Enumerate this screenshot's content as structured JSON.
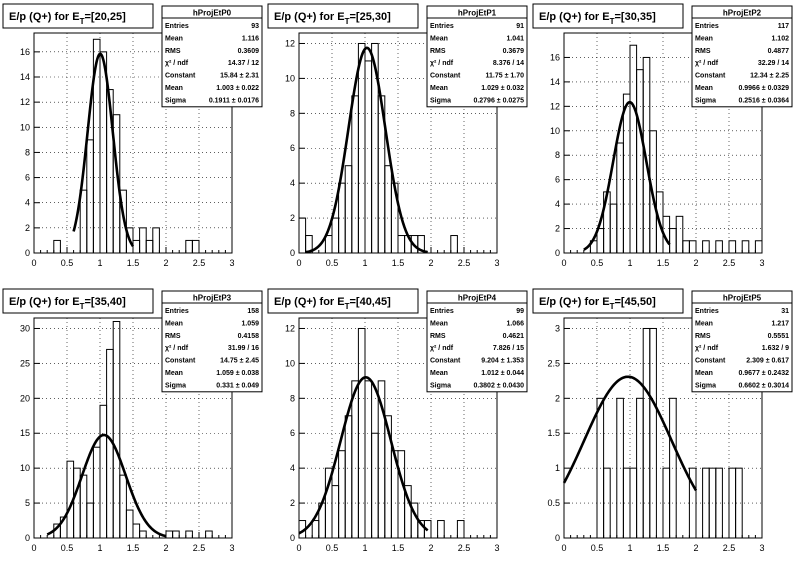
{
  "chart_data": [
    {
      "type": "bar",
      "title": "E/p (Q+) for E_T=[20,25]",
      "title_main": "E/p (Q+) for E",
      "title_sub": "T",
      "title_end": "=[20,25]",
      "stats_name": "hProjEtP0",
      "stats": [
        {
          "label": "Entries",
          "value": "93"
        },
        {
          "label": "Mean",
          "value": "1.116"
        },
        {
          "label": "RMS",
          "value": "0.3609"
        },
        {
          "label": "χ² / ndf",
          "value": "14.37 / 12"
        },
        {
          "label": "Constant",
          "value": "15.84 ± 2.31"
        },
        {
          "label": "Mean",
          "value": "1.003 ± 0.022"
        },
        {
          "label": "Sigma",
          "value": "0.1911 ± 0.0176"
        }
      ],
      "xlim": [
        0,
        3
      ],
      "ylim": [
        0,
        17.5
      ],
      "xticks": [
        0,
        0.5,
        1,
        1.5,
        2,
        2.5,
        3
      ],
      "xtick_labels": [
        "0",
        "0.5",
        "1",
        "1.5",
        "2",
        "2.5",
        "3"
      ],
      "yticks": [
        0,
        2,
        4,
        6,
        8,
        10,
        12,
        14,
        16
      ],
      "ytick_labels": [
        "0",
        "2",
        "4",
        "6",
        "8",
        "10",
        "12",
        "14",
        "16"
      ],
      "bin_width": 0.1,
      "x": [
        0.3,
        0.7,
        0.8,
        0.9,
        1.0,
        1.1,
        1.2,
        1.3,
        1.4,
        1.5,
        1.6,
        1.7,
        1.8,
        1.9,
        2.3,
        2.4
      ],
      "values": [
        1,
        5,
        9,
        17,
        16,
        13,
        11,
        5,
        2,
        1,
        2,
        1,
        2,
        0,
        1,
        1
      ],
      "fit": {
        "constant": 15.84,
        "mean": 1.003,
        "sigma": 0.1911,
        "range": [
          0.6,
          1.5
        ]
      }
    },
    {
      "type": "bar",
      "title": "E/p (Q+) for E_T=[25,30]",
      "title_main": "E/p (Q+) for E",
      "title_sub": "T",
      "title_end": "=[25,30]",
      "stats_name": "hProjEtP1",
      "stats": [
        {
          "label": "Entries",
          "value": "91"
        },
        {
          "label": "Mean",
          "value": "1.041"
        },
        {
          "label": "RMS",
          "value": "0.3679"
        },
        {
          "label": "χ² / ndf",
          "value": "8.376 / 14"
        },
        {
          "label": "Constant",
          "value": "11.75 ± 1.70"
        },
        {
          "label": "Mean",
          "value": "1.029 ± 0.032"
        },
        {
          "label": "Sigma",
          "value": "0.2796 ± 0.0275"
        }
      ],
      "xlim": [
        0,
        3
      ],
      "ylim": [
        0,
        12.6
      ],
      "xticks": [
        0,
        0.5,
        1,
        1.5,
        2,
        2.5,
        3
      ],
      "xtick_labels": [
        "0",
        "0.5",
        "1",
        "1.5",
        "2",
        "2.5",
        "3"
      ],
      "yticks": [
        0,
        2,
        4,
        6,
        8,
        10,
        12
      ],
      "ytick_labels": [
        "0",
        "2",
        "4",
        "6",
        "8",
        "10",
        "12"
      ],
      "bin_width": 0.1,
      "x": [
        0.0,
        0.1,
        0.4,
        0.5,
        0.6,
        0.7,
        0.8,
        0.9,
        1.0,
        1.1,
        1.2,
        1.3,
        1.4,
        1.5,
        1.6,
        1.7,
        1.8,
        2.3
      ],
      "values": [
        2,
        1,
        1,
        2,
        4,
        5,
        9,
        12,
        11,
        12,
        9,
        5,
        4,
        1,
        1,
        1,
        1,
        1
      ],
      "fit": {
        "constant": 11.75,
        "mean": 1.029,
        "sigma": 0.2796,
        "range": [
          0.1,
          1.95
        ]
      }
    },
    {
      "type": "bar",
      "title": "E/p (Q+) for E_T=[30,35]",
      "title_main": "E/p (Q+) for E",
      "title_sub": "T",
      "title_end": "=[30,35]",
      "stats_name": "hProjEtP2",
      "stats": [
        {
          "label": "Entries",
          "value": "117"
        },
        {
          "label": "Mean",
          "value": "1.102"
        },
        {
          "label": "RMS",
          "value": "0.4877"
        },
        {
          "label": "χ² / ndf",
          "value": "32.29 / 14"
        },
        {
          "label": "Constant",
          "value": "12.34 ± 2.25"
        },
        {
          "label": "Mean",
          "value": "0.9966 ± 0.0329"
        },
        {
          "label": "Sigma",
          "value": "0.2516 ± 0.0364"
        }
      ],
      "xlim": [
        0,
        3
      ],
      "ylim": [
        0,
        18
      ],
      "xticks": [
        0,
        0.5,
        1,
        1.5,
        2,
        2.5,
        3
      ],
      "xtick_labels": [
        "0",
        "0.5",
        "1",
        "1.5",
        "2",
        "2.5",
        "3"
      ],
      "yticks": [
        0,
        2,
        4,
        6,
        8,
        10,
        12,
        14,
        16
      ],
      "ytick_labels": [
        "0",
        "2",
        "4",
        "6",
        "8",
        "10",
        "12",
        "14",
        "16"
      ],
      "bin_width": 0.1,
      "x": [
        0.4,
        0.5,
        0.6,
        0.7,
        0.8,
        0.9,
        1.0,
        1.1,
        1.2,
        1.3,
        1.4,
        1.5,
        1.6,
        1.7,
        1.8,
        1.9,
        2.1,
        2.3,
        2.5,
        2.7,
        2.9
      ],
      "values": [
        1,
        2,
        5,
        4,
        9,
        13,
        17,
        15,
        16,
        10,
        5,
        3,
        2,
        3,
        1,
        1,
        1,
        1,
        1,
        1,
        1
      ],
      "fit": {
        "constant": 12.34,
        "mean": 0.9966,
        "sigma": 0.2516,
        "range": [
          0.3,
          1.6
        ]
      }
    },
    {
      "type": "bar",
      "title": "E/p (Q+) for E_T=[35,40]",
      "title_main": "E/p (Q+) for E",
      "title_sub": "T",
      "title_end": "=[35,40]",
      "stats_name": "hProjEtP3",
      "stats": [
        {
          "label": "Entries",
          "value": "158"
        },
        {
          "label": "Mean",
          "value": "1.059"
        },
        {
          "label": "RMS",
          "value": "0.4158"
        },
        {
          "label": "χ² / ndf",
          "value": "31.99 / 16"
        },
        {
          "label": "Constant",
          "value": "14.75 ± 2.45"
        },
        {
          "label": "Mean",
          "value": "1.059 ± 0.038"
        },
        {
          "label": "Sigma",
          "value": "0.331 ± 0.049"
        }
      ],
      "xlim": [
        0,
        3
      ],
      "ylim": [
        0,
        31.5
      ],
      "xticks": [
        0,
        0.5,
        1,
        1.5,
        2,
        2.5,
        3
      ],
      "xtick_labels": [
        "0",
        "0.5",
        "1",
        "1.5",
        "2",
        "2.5",
        "3"
      ],
      "yticks": [
        0,
        5,
        10,
        15,
        20,
        25,
        30
      ],
      "ytick_labels": [
        "0",
        "5",
        "10",
        "15",
        "20",
        "25",
        "30"
      ],
      "bin_width": 0.1,
      "x": [
        0.3,
        0.4,
        0.5,
        0.6,
        0.7,
        0.8,
        0.9,
        1.0,
        1.1,
        1.2,
        1.3,
        1.4,
        1.5,
        1.6,
        2.0,
        2.1,
        2.3,
        2.6
      ],
      "values": [
        2,
        3,
        11,
        10,
        9,
        5,
        13,
        19,
        27,
        31,
        9,
        4,
        2,
        1,
        1,
        1,
        1,
        1
      ],
      "fit": {
        "constant": 14.75,
        "mean": 1.059,
        "sigma": 0.331,
        "range": [
          0.2,
          2.0
        ]
      }
    },
    {
      "type": "bar",
      "title": "E/p (Q+) for E_T=[40,45]",
      "title_main": "E/p (Q+) for E",
      "title_sub": "T",
      "title_end": "=[40,45]",
      "stats_name": "hProjEtP4",
      "stats": [
        {
          "label": "Entries",
          "value": "99"
        },
        {
          "label": "Mean",
          "value": "1.066"
        },
        {
          "label": "RMS",
          "value": "0.4621"
        },
        {
          "label": "χ² / ndf",
          "value": "7.826 / 15"
        },
        {
          "label": "Constant",
          "value": "9.204 ± 1.353"
        },
        {
          "label": "Mean",
          "value": "1.012 ± 0.044"
        },
        {
          "label": "Sigma",
          "value": "0.3802 ± 0.0430"
        }
      ],
      "xlim": [
        0,
        3
      ],
      "ylim": [
        0,
        12.6
      ],
      "xticks": [
        0,
        0.5,
        1,
        1.5,
        2,
        2.5,
        3
      ],
      "xtick_labels": [
        "0",
        "0.5",
        "1",
        "1.5",
        "2",
        "2.5",
        "3"
      ],
      "yticks": [
        0,
        2,
        4,
        6,
        8,
        10,
        12
      ],
      "ytick_labels": [
        "0",
        "2",
        "4",
        "6",
        "8",
        "10",
        "12"
      ],
      "bin_width": 0.1,
      "x": [
        0.0,
        0.2,
        0.3,
        0.4,
        0.5,
        0.6,
        0.7,
        0.8,
        0.9,
        1.0,
        1.1,
        1.2,
        1.3,
        1.4,
        1.5,
        1.6,
        1.7,
        1.8,
        1.9,
        2.1,
        2.4
      ],
      "values": [
        1,
        1,
        2,
        4,
        3,
        5,
        7,
        9,
        12,
        9,
        6,
        9,
        7,
        5,
        5,
        3,
        2,
        1,
        1,
        1,
        1
      ],
      "fit": {
        "constant": 9.204,
        "mean": 1.012,
        "sigma": 0.3802,
        "range": [
          0.0,
          1.95
        ]
      }
    },
    {
      "type": "bar",
      "title": "E/p (Q+) for E_T=[45,50]",
      "title_main": "E/p (Q+) for E",
      "title_sub": "T",
      "title_end": "=[45,50]",
      "stats_name": "hProjEtP5",
      "stats": [
        {
          "label": "Entries",
          "value": "31"
        },
        {
          "label": "Mean",
          "value": "1.217"
        },
        {
          "label": "RMS",
          "value": "0.5551"
        },
        {
          "label": "χ² / ndf",
          "value": "1.632 / 9"
        },
        {
          "label": "Constant",
          "value": "2.309 ± 0.617"
        },
        {
          "label": "Mean",
          "value": "0.9677 ± 0.2432"
        },
        {
          "label": "Sigma",
          "value": "0.6602 ± 0.3014"
        }
      ],
      "xlim": [
        0,
        3
      ],
      "ylim": [
        0,
        3.15
      ],
      "xticks": [
        0,
        0.5,
        1,
        1.5,
        2,
        2.5,
        3
      ],
      "xtick_labels": [
        "0",
        "0.5",
        "1",
        "1.5",
        "2",
        "2.5",
        "3"
      ],
      "yticks": [
        0,
        0.5,
        1,
        1.5,
        2,
        2.5,
        3
      ],
      "ytick_labels": [
        "0",
        "0.5",
        "1",
        "1.5",
        "2",
        "2.5",
        "3"
      ],
      "bin_width": 0.1,
      "x": [
        0.5,
        0.6,
        0.8,
        0.9,
        1.0,
        1.1,
        1.2,
        1.3,
        1.5,
        1.6,
        1.9,
        2.1,
        2.2,
        2.3,
        2.5,
        2.6
      ],
      "values": [
        2,
        1,
        2,
        1,
        1,
        2,
        3,
        3,
        1,
        2,
        1,
        1,
        1,
        1,
        1,
        1
      ],
      "fit": {
        "constant": 2.309,
        "mean": 0.9677,
        "sigma": 0.6602,
        "range": [
          0.0,
          2.0
        ]
      }
    }
  ]
}
